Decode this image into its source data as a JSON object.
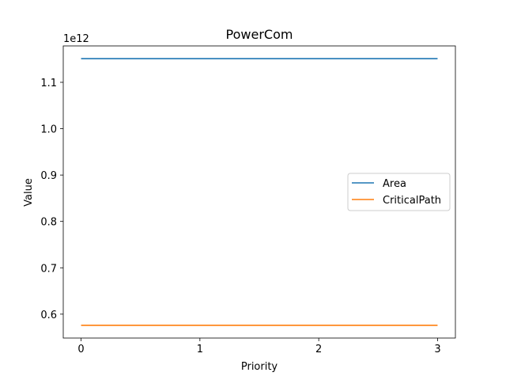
{
  "chart_data": {
    "type": "line",
    "title": "PowerCom",
    "xlabel": "Priority",
    "ylabel": "Value",
    "offset_label": "1e12",
    "x": [
      0,
      1,
      2,
      3
    ],
    "xticks": [
      0,
      1,
      2,
      3
    ],
    "xtick_labels": [
      "0",
      "1",
      "2",
      "3"
    ],
    "yticks": [
      0.6,
      0.7,
      0.8,
      0.9,
      1.0,
      1.1
    ],
    "ytick_labels": [
      "0.6",
      "0.7",
      "0.8",
      "0.9",
      "1.0",
      "1.1"
    ],
    "xlim": [
      -0.15,
      3.15
    ],
    "ylim": [
      0.5485,
      1.1785
    ],
    "grid": false,
    "legend_position": "center-right",
    "series": [
      {
        "name": "Area",
        "color": "#1f77b4",
        "values": [
          1.151,
          1.151,
          1.151,
          1.151
        ]
      },
      {
        "name": "CriticalPath",
        "color": "#ff7f0e",
        "values": [
          0.576,
          0.576,
          0.576,
          0.576
        ]
      }
    ]
  }
}
